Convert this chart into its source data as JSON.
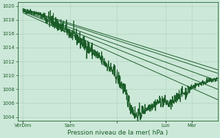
{
  "xlabel": "Pression niveau de la mer( hPa )",
  "ylim": [
    1003.5,
    1020.5
  ],
  "xlim": [
    0,
    115
  ],
  "yticks": [
    1004,
    1006,
    1008,
    1010,
    1012,
    1014,
    1016,
    1018,
    1020
  ],
  "xtick_positions": [
    3,
    30,
    57,
    85,
    100
  ],
  "xtick_labels": [
    "VérDim",
    "Sam",
    "",
    "Lun",
    "Mar"
  ],
  "bg_color": "#cce8d8",
  "grid_color": "#aacfba",
  "line_color": "#1a5c28",
  "tick_color": "#1a5c28",
  "spine_color": "#1a5c28",
  "forecast_lines": [
    [
      3,
      1019.5,
      115,
      1010.3
    ],
    [
      3,
      1019.3,
      115,
      1009.2
    ],
    [
      3,
      1019.2,
      115,
      1008.0
    ],
    [
      3,
      1019.0,
      115,
      1006.5
    ],
    [
      3,
      1019.6,
      115,
      1010.8
    ]
  ]
}
